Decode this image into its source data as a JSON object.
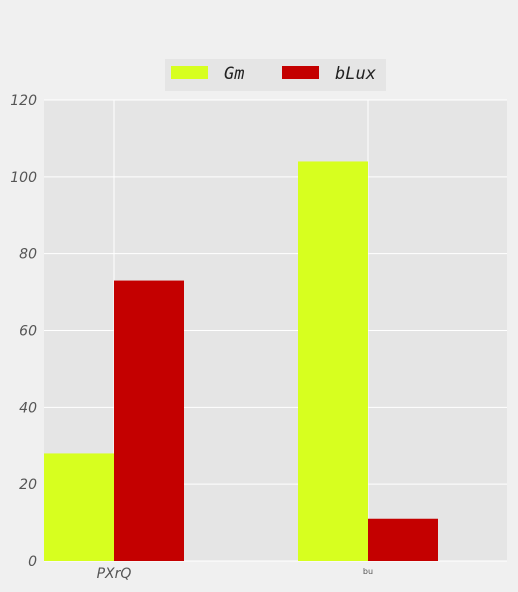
{
  "chart_data": {
    "type": "bar",
    "categories": [
      "PXrQ",
      "bu"
    ],
    "series": [
      {
        "name": "Gm",
        "values": [
          28,
          104
        ],
        "color": "#d7ff1f"
      },
      {
        "name": "bLux",
        "values": [
          73,
          11
        ],
        "color": "#c40000"
      }
    ],
    "ylim": [
      0,
      120
    ],
    "yticks": [
      0,
      20,
      40,
      60,
      80,
      100,
      120
    ],
    "grid": true,
    "legend_position": "top-center",
    "plot_background": "#e5e5e5",
    "grid_color": "#ffffff"
  }
}
